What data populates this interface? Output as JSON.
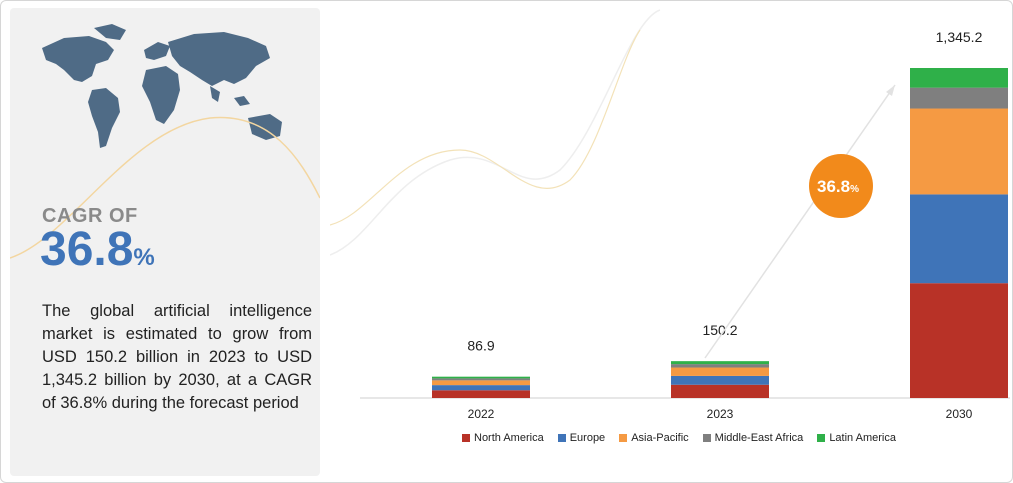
{
  "panel": {
    "cagr_label": "CAGR OF",
    "cagr_value": "36.8",
    "cagr_percent": "%",
    "description": "The global artificial intelligence market is estimated to grow from USD 150.2 billion in 2023 to USD 1,345.2 billion by 2030, at a CAGR of 36.8% during the forecast period"
  },
  "chart_data": {
    "type": "bar",
    "stacked": true,
    "categories": [
      "2022",
      "2023",
      "2030"
    ],
    "totals": [
      86.9,
      150.2,
      1345.2
    ],
    "total_labels": [
      "86.9",
      "150.2",
      "1,345.2"
    ],
    "series": [
      {
        "name": "North America",
        "color": "#b83227",
        "values": [
          31.5,
          54.0,
          468.0
        ]
      },
      {
        "name": "Europe",
        "color": "#3f74b8",
        "values": [
          21.0,
          36.0,
          362.0
        ]
      },
      {
        "name": "Asia-Pacific",
        "color": "#f59a43",
        "values": [
          19.4,
          34.2,
          350.0
        ]
      },
      {
        "name": "Middle-East Africa",
        "color": "#7f7f7f",
        "values": [
          8.0,
          14.0,
          85.2
        ]
      },
      {
        "name": "Latin America",
        "color": "#2fb049",
        "values": [
          7.0,
          12.0,
          80.0
        ]
      }
    ],
    "ylim": [
      0,
      1345.2
    ],
    "annotation": {
      "value": "36.8",
      "suffix": "%",
      "color": "#f28a1b"
    },
    "legend_position": "bottom"
  }
}
